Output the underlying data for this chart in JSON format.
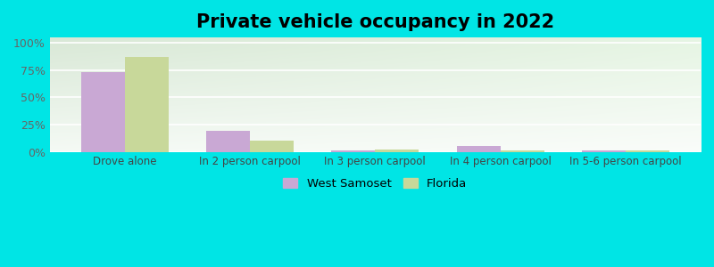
{
  "title": "Private vehicle occupancy in 2022",
  "categories": [
    "Drove alone",
    "In 2 person carpool",
    "In 3 person carpool",
    "In 4 person carpool",
    "In 5-6 person carpool"
  ],
  "west_samoset": [
    73.0,
    19.0,
    1.0,
    5.0,
    1.0
  ],
  "florida": [
    87.0,
    10.0,
    2.0,
    1.0,
    1.0
  ],
  "color_ws": "#c9a8d4",
  "color_fl": "#c8d89a",
  "background_outer": "#00e5e5",
  "yticks": [
    0,
    25,
    50,
    75,
    100
  ],
  "ylim": [
    0,
    105
  ],
  "title_fontsize": 15,
  "legend_label_ws": "West Samoset",
  "legend_label_fl": "Florida",
  "bar_width": 0.35,
  "grad_top_left": "#f0f8ee",
  "grad_top_right": "#d8edd5",
  "grad_bottom_left": "#e8f5f2",
  "grad_bottom_right": "#f5faf8"
}
